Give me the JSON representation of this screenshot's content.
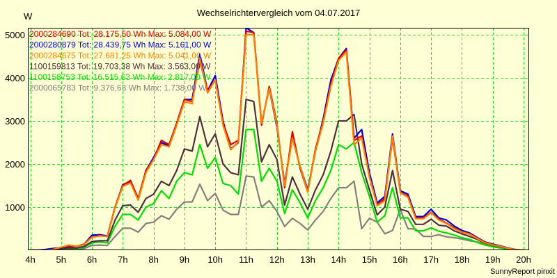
{
  "chart_data": {
    "type": "line",
    "title": "Wechselrichtervergleich vom 04.07.2017",
    "ylabel": "W",
    "xlabel": "",
    "ylim": [
      0,
      5161
    ],
    "xlim": [
      4,
      20
    ],
    "yticks": [
      1000,
      2000,
      3000,
      4000,
      5000
    ],
    "ytick_labels": [
      "1000",
      "2000",
      "3000",
      "4000",
      "5000"
    ],
    "xticks": [
      4,
      5,
      6,
      7,
      8,
      9,
      10,
      11,
      12,
      13,
      14,
      15,
      16,
      17,
      18,
      19,
      20
    ],
    "xtick_labels": [
      "4h",
      "5h",
      "6h",
      "7h",
      "8h",
      "9h",
      "10h",
      "11h",
      "12h",
      "13h",
      "14h",
      "15h",
      "16h",
      "17h",
      "18h",
      "19h",
      "20h"
    ],
    "grid": true,
    "legend_position": "top-left",
    "footer": "SunnyReport pinxit",
    "x_start": 4,
    "x_step_hours": 0.25,
    "series": [
      {
        "name": "2000284690",
        "legend": "2000284690 Tot: 28.175,50 Wh Max: 5.084,00 W",
        "color": "#E00000",
        "values": [
          0,
          0,
          0,
          20,
          70,
          90,
          90,
          140,
          310,
          340,
          320,
          1000,
          1500,
          1620,
          1200,
          1850,
          2100,
          2550,
          2450,
          2950,
          3500,
          3450,
          4400,
          3700,
          3950,
          2950,
          2450,
          2550,
          5084,
          5050,
          2900,
          3800,
          2950,
          1450,
          2750,
          1900,
          1350,
          2350,
          3000,
          3850,
          4450,
          4650,
          2550,
          2650,
          1700,
          1050,
          1200,
          2600,
          1350,
          1250,
          750,
          750,
          880,
          720,
          630,
          520,
          430,
          380,
          280,
          180,
          130,
          90,
          40,
          10,
          0
        ]
      },
      {
        "name": "2000280879",
        "legend": "2000280879 Tot: 28.439,75 Wh Max: 5.161,00 W",
        "color": "#0000E0",
        "values": [
          0,
          0,
          20,
          40,
          60,
          80,
          90,
          140,
          350,
          360,
          330,
          1000,
          1520,
          1600,
          1180,
          1850,
          2150,
          2500,
          2420,
          2950,
          3500,
          3500,
          4550,
          3700,
          4050,
          3000,
          2350,
          2500,
          5161,
          5050,
          2950,
          3750,
          2850,
          1550,
          2600,
          1950,
          1400,
          2300,
          3050,
          3950,
          4450,
          4680,
          2600,
          2800,
          1800,
          1100,
          1250,
          2700,
          1380,
          1300,
          780,
          780,
          950,
          750,
          700,
          560,
          460,
          400,
          290,
          190,
          140,
          100,
          50,
          15,
          0
        ]
      },
      {
        "name": "2000284675",
        "legend": "2000284675 Tot: 27.681,25 Wh Max: 5.041,00 W",
        "color": "#FF8000",
        "values": [
          0,
          0,
          0,
          20,
          70,
          120,
          90,
          130,
          300,
          330,
          320,
          980,
          1480,
          1560,
          1160,
          1800,
          2100,
          2450,
          2400,
          2900,
          3450,
          3400,
          4450,
          3650,
          3950,
          2900,
          2330,
          2520,
          5000,
          5000,
          2950,
          3750,
          2900,
          1500,
          2600,
          1950,
          1350,
          2300,
          2950,
          3800,
          4400,
          4600,
          2450,
          2600,
          1700,
          1030,
          1150,
          2650,
          1330,
          1230,
          730,
          730,
          870,
          700,
          620,
          500,
          420,
          370,
          270,
          170,
          120,
          90,
          40,
          10,
          0
        ]
      },
      {
        "name": "1100159813",
        "legend": "1100159813 Tot: 19.703,38 Wh Max: 3.563,00 W",
        "color": "#503040",
        "values": [
          0,
          0,
          0,
          10,
          40,
          50,
          50,
          90,
          200,
          220,
          220,
          700,
          1030,
          1050,
          880,
          1200,
          1300,
          1600,
          1500,
          1850,
          2350,
          2300,
          3100,
          2400,
          2700,
          2000,
          1800,
          1750,
          3500,
          3450,
          2050,
          2450,
          2100,
          1050,
          1700,
          1300,
          950,
          1400,
          1750,
          2300,
          3000,
          3000,
          3150,
          2000,
          1400,
          820,
          1000,
          1850,
          950,
          900,
          600,
          600,
          720,
          580,
          560,
          450,
          380,
          320,
          250,
          160,
          110,
          80,
          40,
          10,
          0
        ]
      },
      {
        "name": "1100158753",
        "legend": "1100158753 Tot: 16.515,63 Wh Max: 2.817,00 W",
        "color": "#00DD00",
        "values": [
          0,
          0,
          0,
          10,
          30,
          40,
          40,
          70,
          170,
          190,
          170,
          560,
          830,
          830,
          700,
          1000,
          1080,
          1380,
          1200,
          1600,
          1800,
          1750,
          2450,
          1900,
          2150,
          1550,
          1500,
          1300,
          2800,
          2800,
          1600,
          1900,
          1600,
          850,
          1400,
          1100,
          750,
          1150,
          1450,
          1850,
          2450,
          2350,
          2500,
          1800,
          1250,
          650,
          800,
          1450,
          750,
          750,
          450,
          450,
          520,
          440,
          400,
          350,
          290,
          250,
          180,
          120,
          80,
          50,
          25,
          10,
          0
        ]
      },
      {
        "name": "2000065783",
        "legend": "2000065783 Tot: 9.376,63 Wh Max: 1.738,00 W",
        "color": "#808080",
        "values": [
          0,
          0,
          0,
          5,
          15,
          20,
          20,
          40,
          110,
          120,
          110,
          320,
          510,
          510,
          420,
          620,
          650,
          800,
          720,
          950,
          1120,
          1120,
          1530,
          1150,
          1320,
          930,
          830,
          830,
          1720,
          1700,
          1000,
          1150,
          900,
          550,
          740,
          620,
          470,
          700,
          900,
          1200,
          1450,
          1450,
          1600,
          500,
          740,
          650,
          380,
          460,
          950,
          500,
          490,
          320,
          320,
          360,
          310,
          290,
          260,
          220,
          190,
          150,
          100,
          70,
          40,
          15,
          0
        ]
      }
    ]
  }
}
